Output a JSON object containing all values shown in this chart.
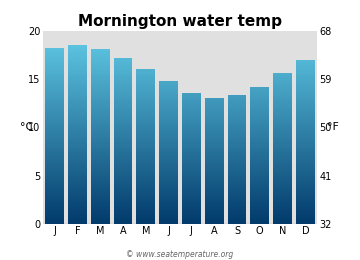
{
  "title": "Mornington water temp",
  "months": [
    "J",
    "F",
    "M",
    "A",
    "M",
    "J",
    "J",
    "A",
    "S",
    "O",
    "N",
    "D"
  ],
  "values_c": [
    18.3,
    18.6,
    18.1,
    17.2,
    16.1,
    14.8,
    13.6,
    13.1,
    13.4,
    14.2,
    15.7,
    17.0
  ],
  "ylim_c": [
    0,
    20
  ],
  "yticks_c": [
    0,
    5,
    10,
    15,
    20
  ],
  "yticks_f": [
    32,
    41,
    50,
    59,
    68
  ],
  "ylabel_left": "°C",
  "ylabel_right": "°F",
  "bar_color_top": "#62cde8",
  "bar_color_bottom": "#013a6b",
  "plot_bg_color": "#e0e0e0",
  "fig_bg_color": "#ffffff",
  "watermark": "© www.seatemperature.org",
  "title_fontsize": 11,
  "tick_fontsize": 7,
  "label_fontsize": 8
}
